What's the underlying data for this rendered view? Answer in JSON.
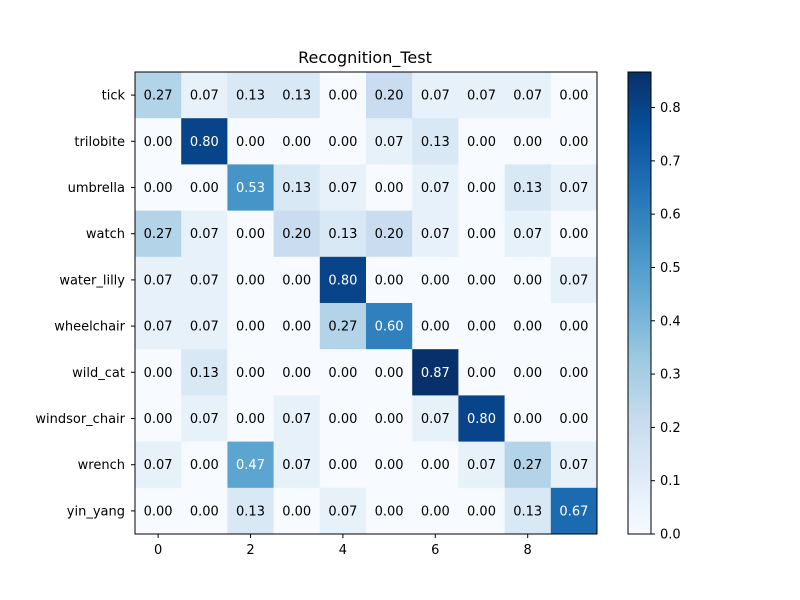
{
  "chart_data": {
    "type": "heatmap",
    "title": "Recognition_Test",
    "row_labels": [
      "tick",
      "trilobite",
      "umbrella",
      "watch",
      "water_lilly",
      "wheelchair",
      "wild_cat",
      "windsor_chair",
      "wrench",
      "yin_yang"
    ],
    "x_ticks": [
      0,
      2,
      4,
      6,
      8
    ],
    "values": [
      [
        0.27,
        0.07,
        0.13,
        0.13,
        0.0,
        0.2,
        0.07,
        0.07,
        0.07,
        0.0
      ],
      [
        0.0,
        0.8,
        0.0,
        0.0,
        0.0,
        0.07,
        0.13,
        0.0,
        0.0,
        0.0
      ],
      [
        0.0,
        0.0,
        0.53,
        0.13,
        0.07,
        0.0,
        0.07,
        0.0,
        0.13,
        0.07
      ],
      [
        0.27,
        0.07,
        0.0,
        0.2,
        0.13,
        0.2,
        0.07,
        0.0,
        0.07,
        0.0
      ],
      [
        0.07,
        0.07,
        0.0,
        0.0,
        0.8,
        0.0,
        0.0,
        0.0,
        0.0,
        0.07
      ],
      [
        0.07,
        0.07,
        0.0,
        0.0,
        0.27,
        0.6,
        0.0,
        0.0,
        0.0,
        0.0
      ],
      [
        0.0,
        0.13,
        0.0,
        0.0,
        0.0,
        0.0,
        0.87,
        0.0,
        0.0,
        0.0
      ],
      [
        0.0,
        0.07,
        0.0,
        0.07,
        0.0,
        0.0,
        0.07,
        0.8,
        0.0,
        0.0
      ],
      [
        0.07,
        0.0,
        0.47,
        0.07,
        0.0,
        0.0,
        0.0,
        0.07,
        0.27,
        0.07
      ],
      [
        0.0,
        0.0,
        0.13,
        0.0,
        0.07,
        0.0,
        0.0,
        0.0,
        0.13,
        0.67
      ]
    ],
    "colormap": "Blues",
    "colorbar": {
      "range": [
        0.0,
        0.8667
      ],
      "ticks": [
        "0.0",
        "0.1",
        "0.2",
        "0.3",
        "0.4",
        "0.5",
        "0.6",
        "0.7",
        "0.8"
      ]
    }
  }
}
